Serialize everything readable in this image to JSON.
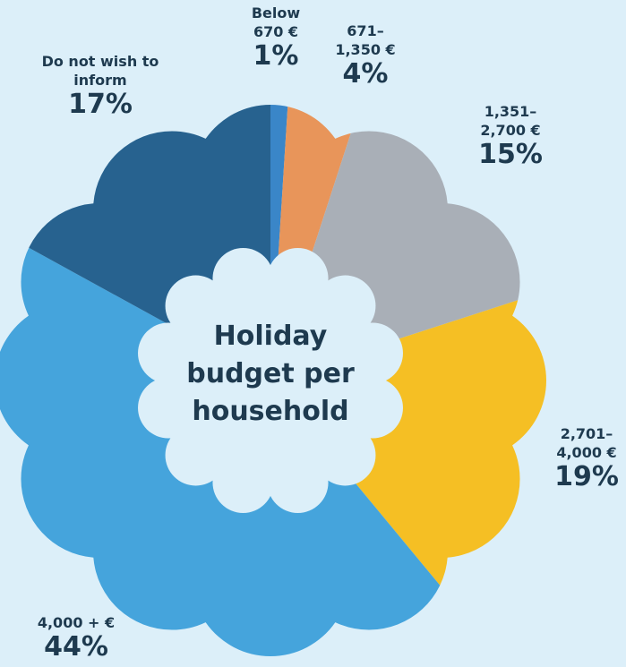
{
  "chart_data": {
    "type": "pie",
    "title": "Holiday budget per household",
    "categories": [
      "Below 670 €",
      "671–1,350 €",
      "1,351–2,700 €",
      "2,701–4,000 €",
      "4,000 + €",
      "Do not wish to inform"
    ],
    "values": [
      1,
      4,
      15,
      19,
      44,
      17
    ],
    "value_labels": [
      "1%",
      "4%",
      "15%",
      "19%",
      "44%",
      "17%"
    ],
    "colors": [
      "#3a86c8",
      "#e8955a",
      "#a9afb7",
      "#f5bf24",
      "#45a4dc",
      "#27628f"
    ]
  }
}
